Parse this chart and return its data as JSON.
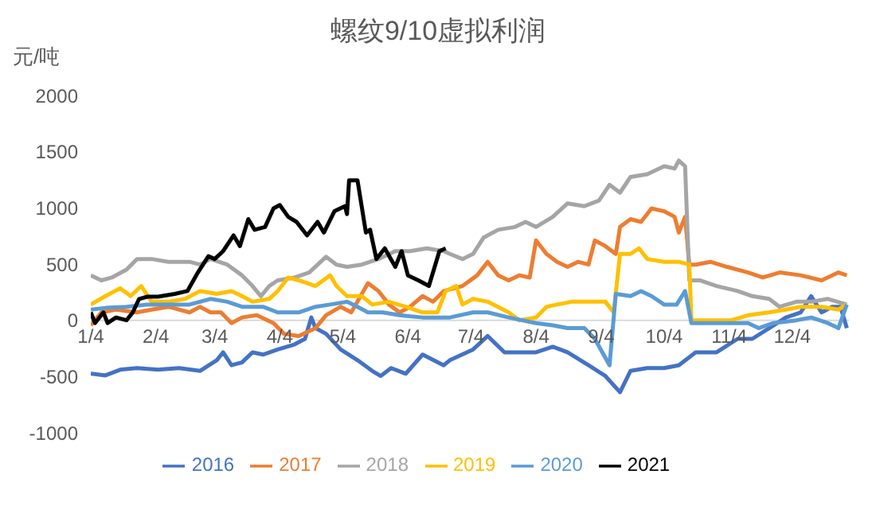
{
  "chart_data": {
    "type": "line",
    "title": "螺纹9/10虚拟利润",
    "ylabel": "元/吨",
    "xlim": [
      "--01-04",
      "--12-31"
    ],
    "xticks": [
      {
        "value": "--01-04",
        "label": "1/4"
      },
      {
        "value": "--02-04",
        "label": "2/4"
      },
      {
        "value": "--03-04",
        "label": "3/4"
      },
      {
        "value": "--04-04",
        "label": "4/4"
      },
      {
        "value": "--05-04",
        "label": "5/4"
      },
      {
        "value": "--06-04",
        "label": "6/4"
      },
      {
        "value": "--07-04",
        "label": "7/4"
      },
      {
        "value": "--08-04",
        "label": "8/4"
      },
      {
        "value": "--09-04",
        "label": "9/4"
      },
      {
        "value": "--10-04",
        "label": "10/4"
      },
      {
        "value": "--11-04",
        "label": "11/4"
      },
      {
        "value": "--12-04",
        "label": "12/4"
      }
    ],
    "ylim": [
      -1000,
      2000
    ],
    "yticks": [
      -1000,
      -500,
      0,
      500,
      1000,
      1500,
      2000
    ],
    "grid": false,
    "legend": "bottom",
    "marker": "none",
    "line_style": "solid",
    "series": [
      {
        "name": "2016",
        "color": "#4472c4",
        "x": [
          "--01-04",
          "--01-11",
          "--01-18",
          "--01-26",
          "--02-05",
          "--02-15",
          "--02-25",
          "--03-05",
          "--03-08",
          "--03-12",
          "--03-17",
          "--03-22",
          "--03-27",
          "--04-03",
          "--04-11",
          "--04-16",
          "--04-19",
          "--04-21",
          "--04-26",
          "--05-03",
          "--05-11",
          "--05-18",
          "--05-22",
          "--05-27",
          "--06-03",
          "--06-11",
          "--06-21",
          "--06-24",
          "--07-05",
          "--07-12",
          "--07-20",
          "--07-27",
          "--08-04",
          "--08-12",
          "--08-19",
          "--08-29",
          "--09-06",
          "--09-13",
          "--09-18",
          "--09-26",
          "--10-04",
          "--10-11",
          "--10-19",
          "--10-29",
          "--11-08",
          "--11-15",
          "--11-23",
          "--12-01",
          "--12-08",
          "--12-13",
          "--12-18",
          "--12-23",
          "--12-27",
          "--12-30"
        ],
        "values": [
          -475,
          -490,
          -440,
          -425,
          -440,
          -425,
          -450,
          -355,
          -285,
          -400,
          -375,
          -285,
          -305,
          -260,
          -215,
          -165,
          25,
          -70,
          -120,
          -260,
          -355,
          -450,
          -495,
          -425,
          -475,
          -305,
          -400,
          -355,
          -260,
          -140,
          -285,
          -285,
          -285,
          -235,
          -285,
          -400,
          -495,
          -640,
          -450,
          -425,
          -425,
          -400,
          -285,
          -285,
          -165,
          -165,
          -70,
          25,
          70,
          215,
          70,
          120,
          120,
          -70
        ]
      },
      {
        "name": "2017",
        "color": "#ed7d31",
        "x": [
          "--01-04",
          "--01-09",
          "--01-16",
          "--01-26",
          "--02-02",
          "--02-10",
          "--02-20",
          "--02-25",
          "--03-02",
          "--03-07",
          "--03-12",
          "--03-17",
          "--03-24",
          "--04-01",
          "--04-06",
          "--04-13",
          "--04-21",
          "--04-26",
          "--05-03",
          "--05-08",
          "--05-16",
          "--05-21",
          "--05-26",
          "--05-31",
          "--06-05",
          "--06-11",
          "--06-16",
          "--06-21",
          "--06-30",
          "--07-07",
          "--07-12",
          "--07-17",
          "--07-22",
          "--07-27",
          "--08-01",
          "--08-04",
          "--08-09",
          "--08-14",
          "--08-19",
          "--08-24",
          "--08-29",
          "--09-01",
          "--09-06",
          "--09-11",
          "--09-13",
          "--09-18",
          "--09-23",
          "--09-28",
          "--10-04",
          "--10-09",
          "--10-11",
          "--10-14",
          "--10-16",
          "--10-19",
          "--10-26",
          "--11-03",
          "--11-13",
          "--11-20",
          "--11-28",
          "--12-08",
          "--12-18",
          "--12-26",
          "--12-30"
        ],
        "values": [
          -45,
          70,
          95,
          70,
          95,
          120,
          70,
          120,
          70,
          70,
          -25,
          25,
          45,
          -25,
          -120,
          -140,
          -70,
          45,
          120,
          70,
          330,
          260,
          140,
          70,
          120,
          215,
          165,
          260,
          305,
          400,
          520,
          400,
          355,
          400,
          380,
          710,
          590,
          520,
          475,
          520,
          495,
          710,
          660,
          590,
          830,
          900,
          875,
          995,
          970,
          920,
          780,
          920,
          495,
          495,
          520,
          475,
          425,
          380,
          425,
          400,
          355,
          425,
          400
        ]
      },
      {
        "name": "2018",
        "color": "#a5a5a5",
        "x": [
          "--01-04",
          "--01-09",
          "--01-14",
          "--01-21",
          "--01-26",
          "--02-02",
          "--02-10",
          "--02-20",
          "--02-25",
          "--03-02",
          "--03-10",
          "--03-17",
          "--03-22",
          "--03-26",
          "--03-30",
          "--04-03",
          "--04-11",
          "--04-18",
          "--04-26",
          "--05-01",
          "--05-06",
          "--05-13",
          "--05-21",
          "--05-29",
          "--06-05",
          "--06-13",
          "--06-21",
          "--06-24",
          "--06-30",
          "--07-05",
          "--07-10",
          "--07-17",
          "--07-25",
          "--07-30",
          "--08-04",
          "--08-12",
          "--08-19",
          "--08-27",
          "--09-03",
          "--09-08",
          "--09-13",
          "--09-18",
          "--09-26",
          "--10-04",
          "--10-09",
          "--10-11",
          "--10-14",
          "--10-16",
          "--10-21",
          "--10-29",
          "--11-08",
          "--11-15",
          "--11-23",
          "--11-28",
          "--12-06",
          "--12-13",
          "--12-21",
          "--12-30"
        ],
        "values": [
          400,
          355,
          380,
          450,
          545,
          545,
          520,
          520,
          495,
          545,
          495,
          400,
          305,
          215,
          305,
          355,
          380,
          425,
          565,
          495,
          475,
          495,
          545,
          615,
          615,
          640,
          615,
          590,
          545,
          590,
          735,
          805,
          830,
          875,
          830,
          920,
          1040,
          1015,
          1065,
          1205,
          1135,
          1275,
          1300,
          1370,
          1350,
          1420,
          1370,
          355,
          355,
          305,
          260,
          215,
          190,
          120,
          165,
          165,
          190,
          140
        ]
      },
      {
        "name": "2019",
        "color": "#ffc000",
        "x": [
          "--01-04",
          "--01-11",
          "--01-18",
          "--01-23",
          "--01-28",
          "--02-02",
          "--02-10",
          "--02-18",
          "--02-25",
          "--03-05",
          "--03-12",
          "--03-17",
          "--03-22",
          "--03-30",
          "--04-03",
          "--04-08",
          "--04-13",
          "--04-21",
          "--04-28",
          "--05-01",
          "--05-06",
          "--05-13",
          "--05-18",
          "--05-26",
          "--06-03",
          "--06-11",
          "--06-18",
          "--06-22",
          "--06-27",
          "--06-30",
          "--07-05",
          "--07-12",
          "--07-22",
          "--07-27",
          "--08-04",
          "--08-09",
          "--08-14",
          "--08-21",
          "--08-29",
          "--09-06",
          "--09-10",
          "--09-13",
          "--09-18",
          "--09-22",
          "--09-26",
          "--10-04",
          "--10-11",
          "--10-16",
          "--10-17",
          "--10-26",
          "--11-05",
          "--11-13",
          "--11-23",
          "--12-01",
          "--12-08",
          "--12-18",
          "--12-26",
          "--12-30"
        ],
        "values": [
          140,
          215,
          285,
          215,
          305,
          165,
          165,
          190,
          260,
          235,
          260,
          215,
          165,
          190,
          260,
          380,
          355,
          305,
          400,
          305,
          215,
          215,
          140,
          165,
          120,
          70,
          70,
          260,
          305,
          140,
          190,
          165,
          70,
          0,
          25,
          120,
          140,
          165,
          165,
          165,
          70,
          590,
          590,
          640,
          545,
          520,
          520,
          495,
          0,
          0,
          0,
          45,
          70,
          95,
          120,
          120,
          95,
          140
        ]
      },
      {
        "name": "2020",
        "color": "#5b9bd5",
        "x": [
          "--01-04",
          "--01-11",
          "--01-21",
          "--01-31",
          "--02-10",
          "--02-20",
          "--03-02",
          "--03-10",
          "--03-17",
          "--03-27",
          "--04-03",
          "--04-13",
          "--04-21",
          "--04-28",
          "--05-06",
          "--05-11",
          "--05-16",
          "--05-23",
          "--05-31",
          "--06-11",
          "--06-21",
          "--06-24",
          "--07-05",
          "--07-12",
          "--07-22",
          "--08-04",
          "--08-12",
          "--08-19",
          "--08-27",
          "--09-01",
          "--09-08",
          "--09-11",
          "--09-18",
          "--09-23",
          "--09-28",
          "--10-04",
          "--10-10",
          "--10-14",
          "--10-17",
          "--10-26",
          "--11-05",
          "--11-13",
          "--11-18",
          "--11-25",
          "--12-06",
          "--12-13",
          "--12-21",
          "--12-26",
          "--12-30"
        ],
        "values": [
          95,
          110,
          120,
          140,
          140,
          140,
          190,
          165,
          120,
          120,
          70,
          70,
          120,
          140,
          165,
          120,
          70,
          70,
          45,
          25,
          25,
          25,
          70,
          70,
          25,
          -25,
          -45,
          -70,
          -70,
          -165,
          -400,
          235,
          215,
          260,
          215,
          140,
          140,
          260,
          -25,
          -25,
          -25,
          -25,
          -70,
          -25,
          0,
          25,
          -25,
          -70,
          140
        ]
      },
      {
        "name": "2021",
        "color": "#000000",
        "x": [
          "--01-04",
          "--01-06",
          "--01-10",
          "--01-12",
          "--01-16",
          "--01-21",
          "--01-24",
          "--01-27",
          "--01-31",
          "--02-05",
          "--02-13",
          "--02-19",
          "--02-24",
          "--03-01",
          "--03-04",
          "--03-08",
          "--03-13",
          "--03-16",
          "--03-20",
          "--03-23",
          "--03-28",
          "--04-01",
          "--04-04",
          "--04-08",
          "--04-12",
          "--04-17",
          "--04-22",
          "--04-25",
          "--04-30",
          "--05-05",
          "--05-06",
          "--05-07",
          "--05-11",
          "--05-15",
          "--05-17",
          "--05-20",
          "--05-24",
          "--05-29",
          "--06-01",
          "--06-04",
          "--06-09",
          "--06-14",
          "--06-19",
          "--06-22"
        ],
        "values": [
          70,
          -25,
          70,
          -25,
          25,
          0,
          70,
          190,
          210,
          210,
          235,
          260,
          425,
          570,
          545,
          615,
          755,
          660,
          900,
          805,
          830,
          995,
          1025,
          920,
          875,
          755,
          875,
          780,
          970,
          1015,
          945,
          1245,
          1245,
          780,
          805,
          545,
          640,
          475,
          615,
          400,
          355,
          305,
          615,
          640
        ]
      }
    ]
  }
}
